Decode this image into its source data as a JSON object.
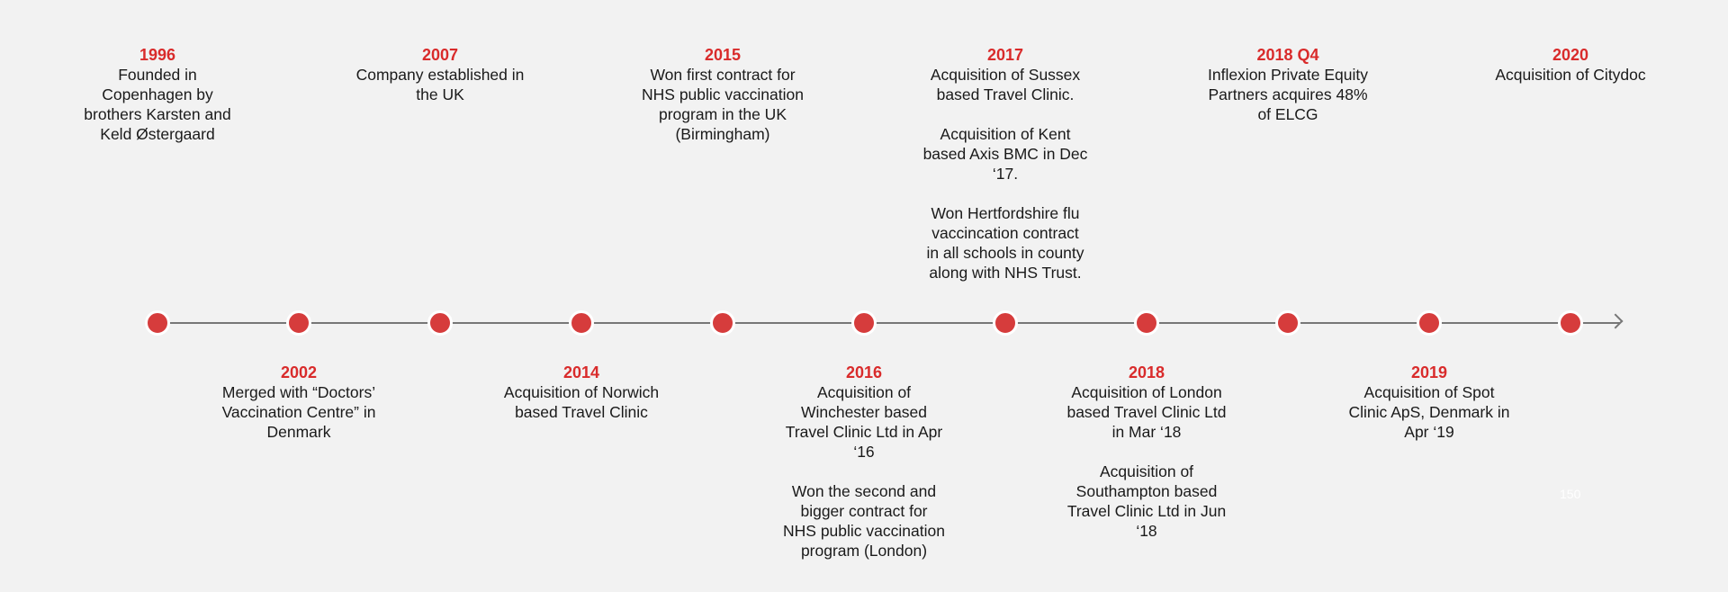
{
  "timeline": {
    "colors": {
      "background": "#f2f2f2",
      "year": "#d92b2b",
      "dot": "#d63c3c",
      "line": "#777777",
      "text": "#1a1a1a"
    },
    "events": [
      {
        "year": "1996",
        "text": "Founded in\nCopenhagen by\nbrothers Karsten and\nKeld Østergaard"
      },
      {
        "year": "2002",
        "text": "Merged with “Doctors’\nVaccination Centre” in\nDenmark"
      },
      {
        "year": "2007",
        "text": "Company established in\nthe UK"
      },
      {
        "year": "2014",
        "text": "Acquisition of Norwich\nbased Travel Clinic"
      },
      {
        "year": "2015",
        "text": "Won first contract for\nNHS public vaccination\nprogram in the UK\n(Birmingham)"
      },
      {
        "year": "2016",
        "text": "Acquisition of\nWinchester based\nTravel Clinic Ltd in Apr\n‘16\n\nWon the second and\nbigger contract for\nNHS public vaccination\nprogram (London)"
      },
      {
        "year": "2017",
        "text": "Acquisition of Sussex\nbased Travel Clinic.\n\nAcquisition of Kent\nbased Axis BMC in Dec\n‘17.\n\nWon Hertfordshire flu\nvaccincation contract\nin all schools in county\nalong with NHS Trust."
      },
      {
        "year": "2018",
        "text": "Acquisition of London\nbased Travel Clinic Ltd\nin Mar ‘18\n\nAcquisition of\nSouthampton based\nTravel Clinic Ltd in Jun\n‘18"
      },
      {
        "year": "2018 Q4",
        "text": "Inflexion Private Equity\nPartners acquires 48%\nof ELCG"
      },
      {
        "year": "2019",
        "text": "Acquisition of Spot\nClinic ApS, Denmark in\nApr ‘19"
      },
      {
        "year": "2020",
        "text": "Acquisition of Citydoc"
      }
    ]
  },
  "page_number": "150"
}
